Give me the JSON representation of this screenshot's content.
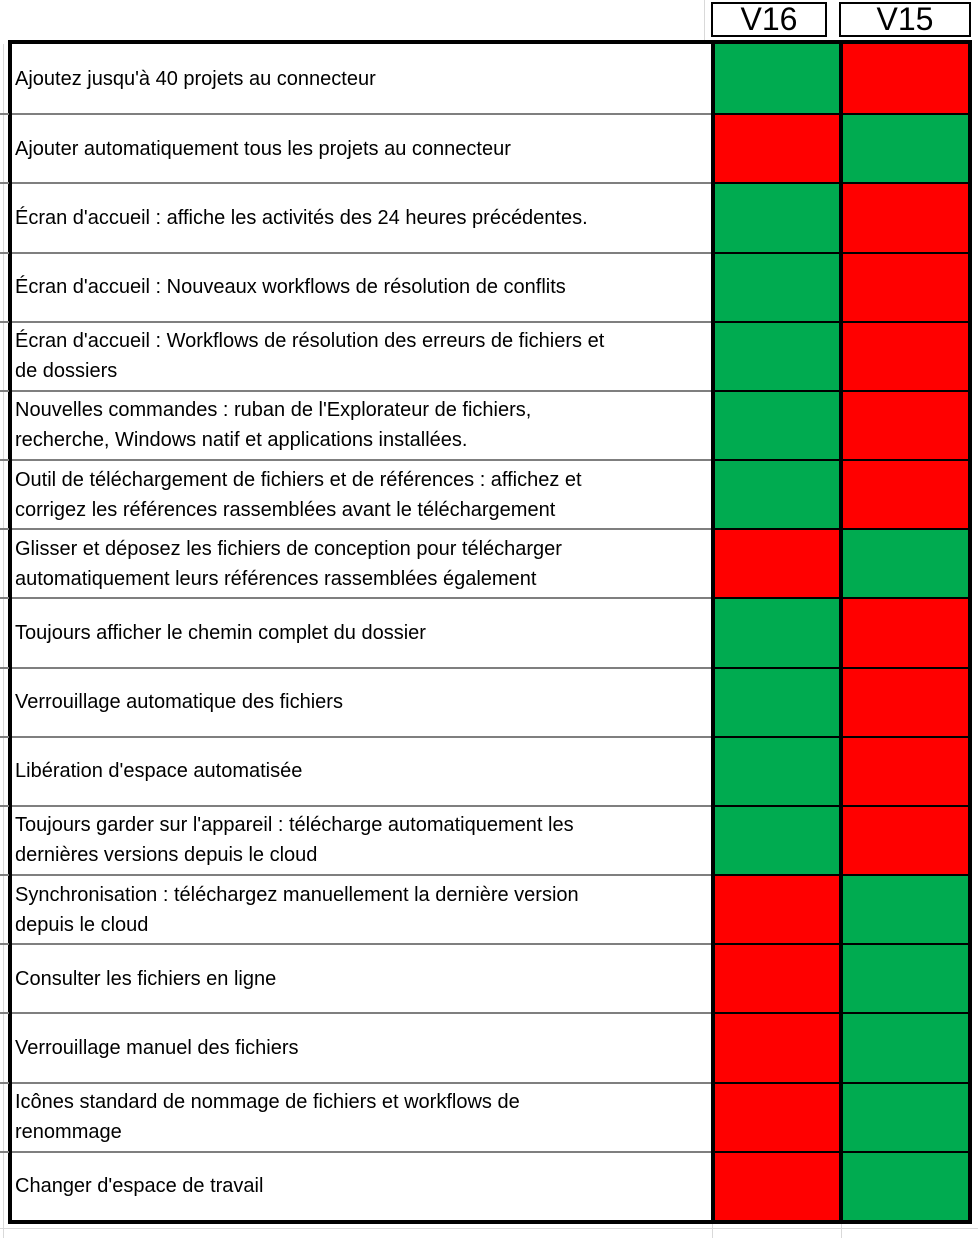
{
  "columns": [
    {
      "id": "v16",
      "label": "V16"
    },
    {
      "id": "v15",
      "label": "V15"
    }
  ],
  "colors": {
    "supported_green": "#00AB50",
    "unsupported_red": "#FF0000",
    "border_black": "#000000",
    "row_divider_gray": "#7F7F7F",
    "gridline_gray": "#D9D9D9",
    "cell_bg_white": "#FFFFFF"
  },
  "rows": [
    {
      "feature": "Ajoutez jusqu'à 40 projets au connecteur",
      "v16": true,
      "v15": false
    },
    {
      "feature": "Ajouter automatiquement tous les projets au connecteur",
      "v16": false,
      "v15": true
    },
    {
      "feature": "Écran d'accueil : affiche les activités des 24 heures précédentes.",
      "v16": true,
      "v15": false
    },
    {
      "feature": "Écran d'accueil : Nouveaux workflows de résolution de conflits",
      "v16": true,
      "v15": false
    },
    {
      "feature": "Écran d'accueil : Workflows de résolution des erreurs de fichiers et\nde dossiers",
      "v16": true,
      "v15": false
    },
    {
      "feature": "Nouvelles commandes : ruban de l'Explorateur de fichiers,\nrecherche, Windows natif et applications installées.",
      "v16": true,
      "v15": false
    },
    {
      "feature": "Outil de téléchargement de fichiers et de références : affichez et\ncorrigez les références rassemblées avant le téléchargement",
      "v16": true,
      "v15": false
    },
    {
      "feature": "Glisser et déposez les fichiers de conception pour télécharger\nautomatiquement leurs références rassemblées également",
      "v16": false,
      "v15": true
    },
    {
      "feature": "Toujours afficher le chemin complet du dossier",
      "v16": true,
      "v15": false
    },
    {
      "feature": "Verrouillage automatique des fichiers",
      "v16": true,
      "v15": false
    },
    {
      "feature": "Libération d'espace automatisée",
      "v16": true,
      "v15": false
    },
    {
      "feature": "Toujours garder sur l'appareil : télécharge automatiquement les\ndernières versions depuis le cloud",
      "v16": true,
      "v15": false
    },
    {
      "feature": "Synchronisation : téléchargez manuellement la dernière version\ndepuis le cloud",
      "v16": false,
      "v15": true
    },
    {
      "feature": "Consulter les fichiers en ligne",
      "v16": false,
      "v15": true
    },
    {
      "feature": "Verrouillage manuel des fichiers",
      "v16": false,
      "v15": true
    },
    {
      "feature": "Icônes standard de nommage de fichiers et workflows de\nrenommage",
      "v16": false,
      "v15": true
    },
    {
      "feature": "Changer d'espace de travail",
      "v16": false,
      "v15": true
    }
  ]
}
